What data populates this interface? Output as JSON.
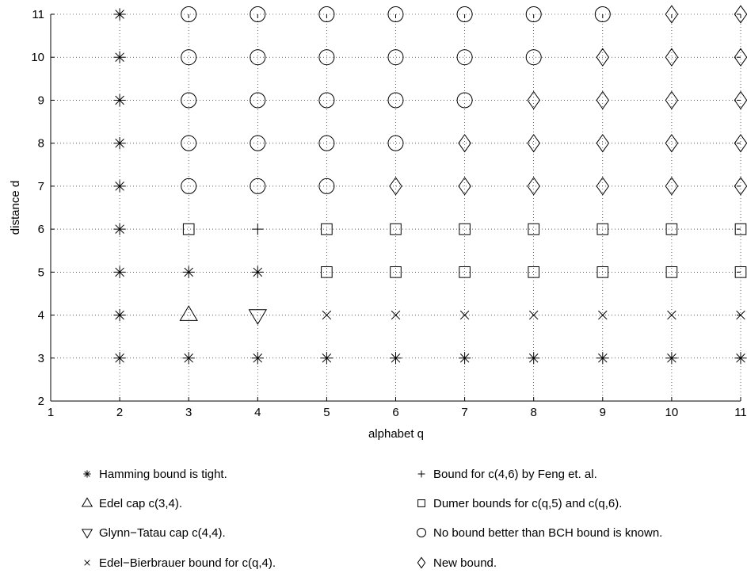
{
  "chart_data": {
    "type": "scatter",
    "title": "",
    "xlabel": "alphabet q",
    "ylabel": "distance d",
    "xlim": [
      1,
      11
    ],
    "ylim": [
      2,
      11
    ],
    "xticks": [
      1,
      2,
      3,
      4,
      5,
      6,
      7,
      8,
      9,
      10,
      11
    ],
    "yticks": [
      2,
      3,
      4,
      5,
      6,
      7,
      8,
      9,
      10,
      11
    ],
    "grid": "dotted",
    "legend_position": "below",
    "series": [
      {
        "name": "Hamming bound is tight.",
        "marker": "asterisk",
        "points": [
          [
            2,
            3
          ],
          [
            2,
            4
          ],
          [
            2,
            5
          ],
          [
            2,
            6
          ],
          [
            2,
            7
          ],
          [
            2,
            8
          ],
          [
            2,
            9
          ],
          [
            2,
            10
          ],
          [
            2,
            11
          ],
          [
            3,
            3
          ],
          [
            3,
            5
          ],
          [
            4,
            3
          ],
          [
            4,
            5
          ],
          [
            5,
            3
          ],
          [
            6,
            3
          ],
          [
            7,
            3
          ],
          [
            8,
            3
          ],
          [
            9,
            3
          ],
          [
            10,
            3
          ],
          [
            11,
            3
          ]
        ]
      },
      {
        "name": "Edel cap c(3,4).",
        "marker": "triangle-up",
        "points": [
          [
            3,
            4
          ]
        ]
      },
      {
        "name": "Glynn−Tatau cap c(4,4).",
        "marker": "triangle-down",
        "points": [
          [
            4,
            4
          ]
        ]
      },
      {
        "name": "Edel−Bierbrauer bound for c(q,4).",
        "marker": "x",
        "points": [
          [
            5,
            4
          ],
          [
            6,
            4
          ],
          [
            7,
            4
          ],
          [
            8,
            4
          ],
          [
            9,
            4
          ],
          [
            10,
            4
          ],
          [
            11,
            4
          ]
        ]
      },
      {
        "name": "Bound for c(4,6) by Feng et. al.",
        "marker": "plus",
        "points": [
          [
            4,
            6
          ]
        ]
      },
      {
        "name": "Dumer bounds for c(q,5) and c(q,6).",
        "marker": "square",
        "points": [
          [
            3,
            6
          ],
          [
            5,
            5
          ],
          [
            5,
            6
          ],
          [
            6,
            5
          ],
          [
            6,
            6
          ],
          [
            7,
            5
          ],
          [
            7,
            6
          ],
          [
            8,
            5
          ],
          [
            8,
            6
          ],
          [
            9,
            5
          ],
          [
            9,
            6
          ],
          [
            10,
            5
          ],
          [
            10,
            6
          ],
          [
            11,
            5
          ],
          [
            11,
            6
          ]
        ]
      },
      {
        "name": "No bound better than BCH bound is known.",
        "marker": "circle",
        "points": [
          [
            3,
            7
          ],
          [
            3,
            8
          ],
          [
            3,
            9
          ],
          [
            3,
            10
          ],
          [
            3,
            11
          ],
          [
            4,
            7
          ],
          [
            4,
            8
          ],
          [
            4,
            9
          ],
          [
            4,
            10
          ],
          [
            4,
            11
          ],
          [
            5,
            7
          ],
          [
            5,
            8
          ],
          [
            5,
            9
          ],
          [
            5,
            10
          ],
          [
            5,
            11
          ],
          [
            6,
            8
          ],
          [
            6,
            9
          ],
          [
            6,
            10
          ],
          [
            6,
            11
          ],
          [
            7,
            9
          ],
          [
            7,
            10
          ],
          [
            7,
            11
          ],
          [
            8,
            10
          ],
          [
            8,
            11
          ],
          [
            9,
            11
          ]
        ]
      },
      {
        "name": "New bound.",
        "marker": "diamond",
        "points": [
          [
            6,
            7
          ],
          [
            7,
            7
          ],
          [
            7,
            8
          ],
          [
            8,
            7
          ],
          [
            8,
            8
          ],
          [
            8,
            9
          ],
          [
            9,
            7
          ],
          [
            9,
            8
          ],
          [
            9,
            9
          ],
          [
            9,
            10
          ],
          [
            10,
            7
          ],
          [
            10,
            8
          ],
          [
            10,
            9
          ],
          [
            10,
            10
          ],
          [
            10,
            11
          ],
          [
            11,
            7
          ],
          [
            11,
            8
          ],
          [
            11,
            9
          ],
          [
            11,
            10
          ],
          [
            11,
            11
          ]
        ]
      }
    ]
  }
}
